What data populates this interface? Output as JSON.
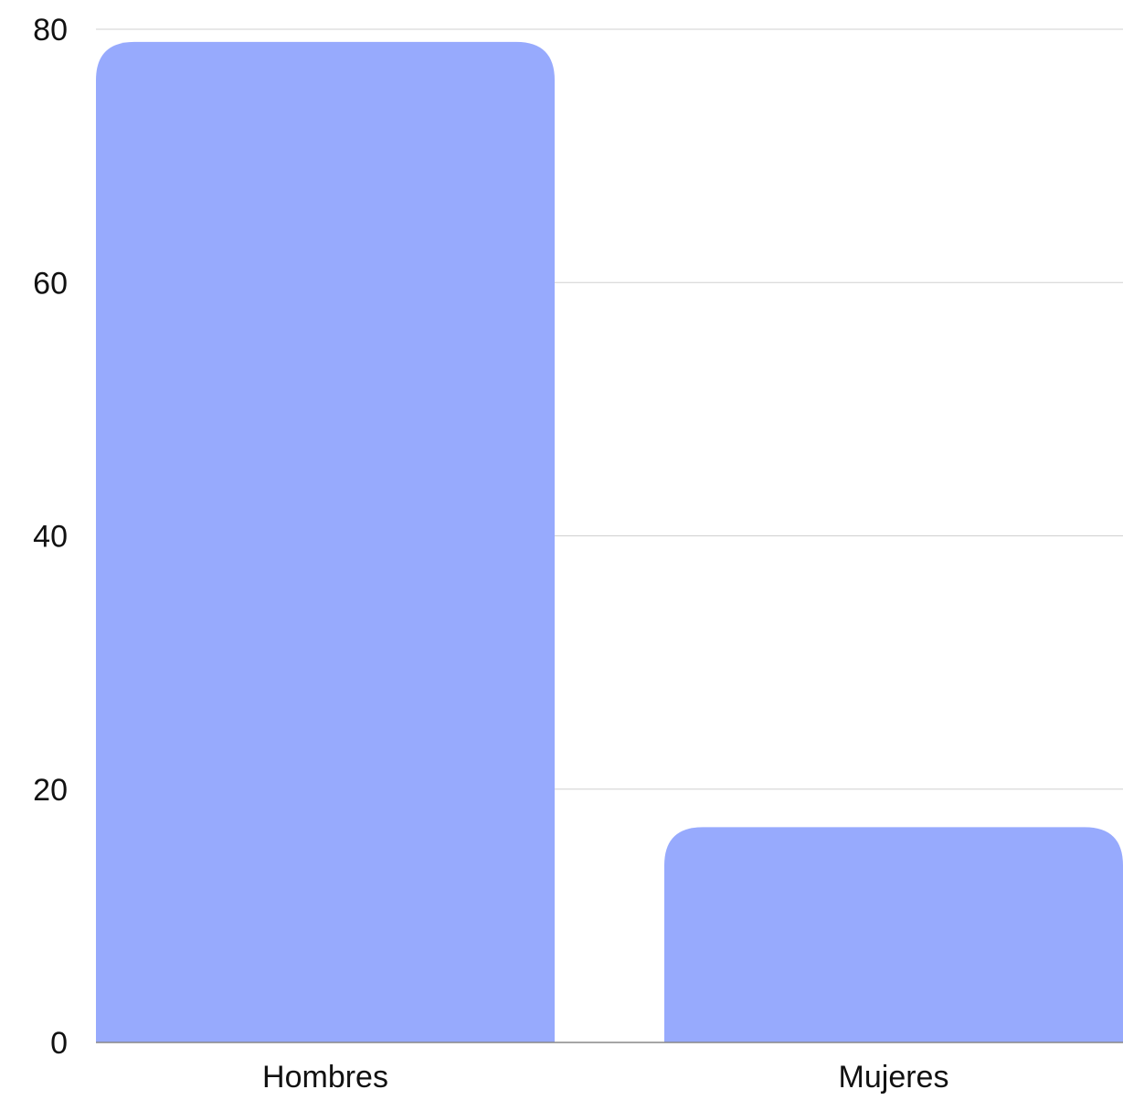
{
  "chart_data": {
    "type": "bar",
    "categories": [
      "Hombres",
      "Mujeres"
    ],
    "values": [
      79,
      17
    ],
    "title": "",
    "xlabel": "",
    "ylabel": "",
    "ylim": [
      0,
      80
    ],
    "y_ticks": [
      0,
      20,
      40,
      60,
      80
    ],
    "grid": true,
    "bar_color": "#97aafd",
    "grid_color": "#d0d0d0",
    "axis_color": "#888888"
  }
}
